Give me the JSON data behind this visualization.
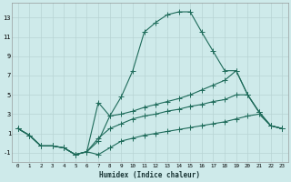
{
  "xlabel": "Humidex (Indice chaleur)",
  "background_color": "#ceeaea",
  "grid_color": "#b8d4d4",
  "line_color": "#1e6b5a",
  "xlim": [
    -0.5,
    23.5
  ],
  "ylim": [
    -2.0,
    14.5
  ],
  "xtick_labels": [
    "0",
    "1",
    "2",
    "3",
    "4",
    "5",
    "6",
    "7",
    "8",
    "9",
    "10",
    "11",
    "12",
    "13",
    "14",
    "15",
    "16",
    "17",
    "18",
    "19",
    "20",
    "21",
    "22",
    "23"
  ],
  "xtick_positions": [
    0,
    1,
    2,
    3,
    4,
    5,
    6,
    7,
    8,
    9,
    10,
    11,
    12,
    13,
    14,
    15,
    16,
    17,
    18,
    19,
    20,
    21,
    22,
    23
  ],
  "ytick_positions": [
    -1,
    1,
    3,
    5,
    7,
    9,
    11,
    13
  ],
  "ytick_labels": [
    "-1",
    "1",
    "3",
    "5",
    "7",
    "9",
    "11",
    "13"
  ],
  "line1_x": [
    0,
    1,
    2,
    3,
    4,
    5,
    6,
    7,
    8,
    9,
    10,
    11,
    12,
    13,
    14,
    15,
    16,
    17,
    18,
    19,
    20,
    21,
    22,
    23
  ],
  "line1_y": [
    1.5,
    0.8,
    -0.3,
    -0.3,
    -0.5,
    -1.2,
    -0.9,
    0.2,
    2.8,
    4.8,
    7.5,
    11.5,
    12.5,
    13.3,
    13.6,
    13.6,
    11.5,
    9.5,
    7.5,
    7.5,
    5.0,
    3.2,
    1.8,
    1.5
  ],
  "line2_x": [
    0,
    1,
    2,
    3,
    4,
    5,
    6,
    7,
    8,
    9,
    10,
    11,
    12,
    13,
    14,
    15,
    16,
    17,
    18,
    19,
    20,
    21,
    22,
    23
  ],
  "line2_y": [
    1.5,
    0.8,
    -0.3,
    -0.3,
    -0.5,
    -1.2,
    -0.9,
    4.2,
    2.8,
    3.0,
    3.3,
    3.7,
    4.0,
    4.3,
    4.6,
    5.0,
    5.5,
    6.0,
    6.5,
    7.5,
    5.0,
    3.2,
    1.8,
    1.5
  ],
  "line3_x": [
    0,
    1,
    2,
    3,
    4,
    5,
    6,
    7,
    8,
    9,
    10,
    11,
    12,
    13,
    14,
    15,
    16,
    17,
    18,
    19,
    20,
    21,
    22,
    23
  ],
  "line3_y": [
    1.5,
    0.8,
    -0.3,
    -0.3,
    -0.5,
    -1.2,
    -0.9,
    0.5,
    1.5,
    2.0,
    2.5,
    2.8,
    3.0,
    3.3,
    3.5,
    3.8,
    4.0,
    4.3,
    4.5,
    5.0,
    5.0,
    3.2,
    1.8,
    1.5
  ],
  "line4_x": [
    0,
    1,
    2,
    3,
    4,
    5,
    6,
    7,
    8,
    9,
    10,
    11,
    12,
    13,
    14,
    15,
    16,
    17,
    18,
    19,
    20,
    21,
    22,
    23
  ],
  "line4_y": [
    1.5,
    0.8,
    -0.3,
    -0.3,
    -0.5,
    -1.2,
    -0.9,
    -1.2,
    -0.5,
    0.2,
    0.5,
    0.8,
    1.0,
    1.2,
    1.4,
    1.6,
    1.8,
    2.0,
    2.2,
    2.5,
    2.8,
    3.0,
    1.8,
    1.5
  ]
}
